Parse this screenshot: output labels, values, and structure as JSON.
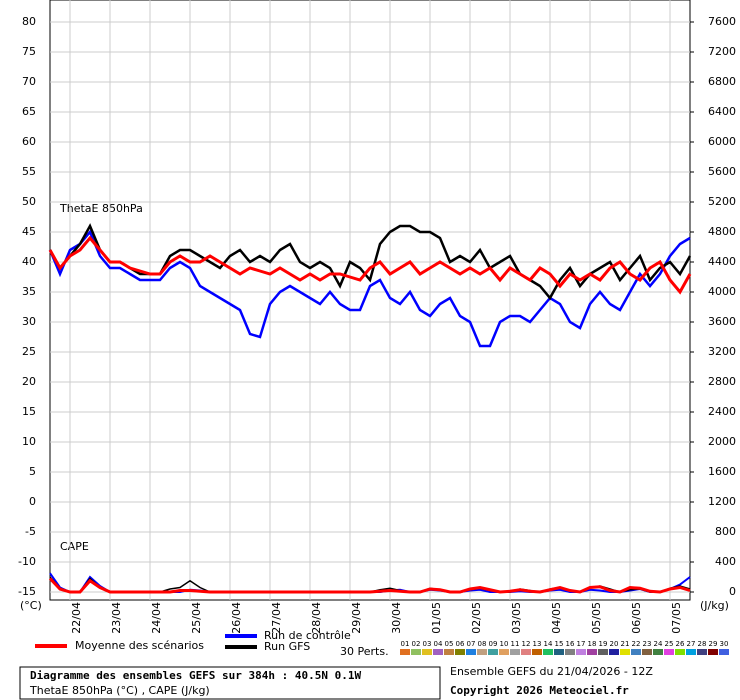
{
  "chart_data": {
    "type": "line",
    "label_left": "ThetaE 850hPa",
    "label_cape": "CAPE",
    "y_unit": "(°C)",
    "y2_unit": "(J/kg)",
    "categories": [
      null,
      null,
      "22/04",
      null,
      null,
      null,
      "23/04",
      null,
      null,
      null,
      "24/04",
      null,
      null,
      null,
      "25/04",
      null,
      null,
      null,
      "26/04",
      null,
      null,
      null,
      "27/04",
      null,
      null,
      null,
      "28/04",
      null,
      null,
      null,
      "29/04",
      null,
      null,
      null,
      "30/04",
      null,
      null,
      null,
      "01/05",
      null,
      null,
      null,
      "02/05",
      null,
      null,
      null,
      "03/05",
      null,
      null,
      null,
      "04/05",
      null,
      null,
      null,
      "05/05",
      null,
      null,
      null,
      "06/05",
      null,
      null,
      null,
      "07/05",
      null,
      null
    ],
    "ylim": [
      -15,
      80
    ],
    "yticks": [
      -15,
      -10,
      -5,
      0,
      5,
      10,
      15,
      20,
      25,
      30,
      35,
      40,
      45,
      50,
      55,
      60,
      65,
      70,
      75,
      80
    ],
    "y2lim": [
      0,
      7600
    ],
    "y2ticks": [
      0,
      400,
      800,
      1200,
      1600,
      2000,
      2400,
      2800,
      3200,
      3600,
      4000,
      4400,
      4800,
      5200,
      5600,
      6000,
      6400,
      6800,
      7200,
      7600
    ],
    "grid": true,
    "series": [
      {
        "name": "Moyenne des scénarios",
        "color": "#ff0000",
        "width": 3,
        "values": [
          42,
          39,
          41,
          42,
          44,
          42,
          40,
          40,
          39,
          38.5,
          38,
          38,
          40,
          41,
          40,
          40,
          41,
          40,
          39,
          38,
          39,
          38.5,
          38,
          39,
          38,
          37,
          38,
          37,
          38,
          38,
          37.5,
          37,
          39,
          40,
          38,
          39,
          40,
          38,
          39,
          40,
          39,
          38,
          39,
          38,
          39,
          37,
          39,
          38,
          37,
          39,
          38,
          36,
          38,
          37,
          38,
          37,
          39,
          40,
          38,
          37,
          39,
          40,
          37,
          35,
          38
        ]
      },
      {
        "name": "Run de contrôle",
        "color": "#0000ff",
        "width": 2.5,
        "values": [
          42,
          38,
          42,
          43,
          45,
          41,
          39,
          39,
          38,
          37,
          37,
          37,
          39,
          40,
          39,
          36,
          35,
          34,
          33,
          32,
          28,
          27.5,
          33,
          35,
          36,
          35,
          34,
          33,
          35,
          33,
          32,
          32,
          36,
          37,
          34,
          33,
          35,
          32,
          31,
          33,
          34,
          31,
          30,
          26,
          26,
          30,
          31,
          31,
          30,
          32,
          34,
          33,
          30,
          29,
          33,
          35,
          33,
          32,
          35,
          38,
          36,
          38,
          41,
          43,
          44
        ]
      },
      {
        "name": "Run GFS",
        "color": "#000000",
        "width": 2.5,
        "values": [
          42,
          39,
          41,
          43,
          46,
          42,
          40,
          40,
          39,
          38,
          38,
          38,
          41,
          42,
          42,
          41,
          40,
          39,
          41,
          42,
          40,
          41,
          40,
          42,
          43,
          40,
          39,
          40,
          39,
          36,
          40,
          39,
          37,
          43,
          45,
          46,
          46,
          45,
          45,
          44,
          40,
          41,
          40,
          42,
          39,
          40,
          41,
          38,
          37,
          36,
          34,
          37,
          39,
          36,
          38,
          39,
          40,
          37,
          39,
          41,
          37,
          39,
          40,
          38,
          41
        ]
      },
      {
        "name": "Moyenne des scénarios",
        "color": "#ff0000",
        "width": 3,
        "axis": "y2",
        "values": [
          180,
          40,
          0,
          0,
          150,
          60,
          0,
          0,
          0,
          0,
          0,
          0,
          0,
          20,
          20,
          10,
          0,
          0,
          0,
          0,
          0,
          0,
          0,
          0,
          0,
          0,
          0,
          0,
          0,
          0,
          0,
          0,
          0,
          10,
          20,
          10,
          0,
          0,
          40,
          30,
          0,
          0,
          40,
          60,
          30,
          0,
          10,
          30,
          10,
          0,
          30,
          60,
          20,
          0,
          60,
          70,
          20,
          0,
          60,
          50,
          10,
          0,
          40,
          60,
          20
        ]
      },
      {
        "name": "Run de contrôle",
        "color": "#0000ff",
        "width": 2,
        "axis": "y2",
        "values": [
          250,
          60,
          0,
          0,
          200,
          80,
          0,
          0,
          0,
          0,
          0,
          0,
          0,
          0,
          30,
          20,
          0,
          0,
          0,
          0,
          0,
          0,
          0,
          0,
          0,
          0,
          0,
          0,
          0,
          0,
          0,
          0,
          0,
          0,
          20,
          30,
          0,
          0,
          30,
          20,
          0,
          0,
          20,
          30,
          0,
          0,
          0,
          10,
          0,
          0,
          20,
          30,
          0,
          0,
          30,
          20,
          0,
          0,
          20,
          40,
          0,
          0,
          40,
          100,
          200
        ]
      },
      {
        "name": "Run GFS",
        "color": "#000000",
        "width": 1.5,
        "axis": "y2",
        "values": [
          200,
          50,
          0,
          0,
          180,
          60,
          0,
          0,
          0,
          0,
          0,
          0,
          40,
          60,
          150,
          60,
          0,
          0,
          0,
          0,
          0,
          0,
          0,
          0,
          0,
          0,
          0,
          0,
          0,
          0,
          0,
          0,
          0,
          30,
          50,
          20,
          0,
          0,
          50,
          30,
          0,
          0,
          30,
          50,
          20,
          0,
          0,
          40,
          20,
          0,
          40,
          60,
          20,
          0,
          60,
          80,
          40,
          0,
          30,
          40,
          0,
          0,
          50,
          80,
          40
        ]
      }
    ],
    "perts_label": "30 Perts.",
    "perturbations": [
      {
        "name": "01",
        "color": "#e07020"
      },
      {
        "name": "02",
        "color": "#90c060"
      },
      {
        "name": "03",
        "color": "#e0c020"
      },
      {
        "name": "04",
        "color": "#a060c0"
      },
      {
        "name": "05",
        "color": "#c08040"
      },
      {
        "name": "06",
        "color": "#808000"
      },
      {
        "name": "07",
        "color": "#2080e0"
      },
      {
        "name": "08",
        "color": "#c0a080"
      },
      {
        "name": "09",
        "color": "#40a0a0"
      },
      {
        "name": "10",
        "color": "#e0a060"
      },
      {
        "name": "11",
        "color": "#a0a0a0"
      },
      {
        "name": "12",
        "color": "#e08080"
      },
      {
        "name": "13",
        "color": "#c06000"
      },
      {
        "name": "14",
        "color": "#20c060"
      },
      {
        "name": "15",
        "color": "#206080"
      },
      {
        "name": "16",
        "color": "#808080"
      },
      {
        "name": "17",
        "color": "#c080e0"
      },
      {
        "name": "18",
        "color": "#a040a0"
      },
      {
        "name": "19",
        "color": "#606060"
      },
      {
        "name": "20",
        "color": "#2020a0"
      },
      {
        "name": "21",
        "color": "#e0e000"
      },
      {
        "name": "22",
        "color": "#4080c0"
      },
      {
        "name": "23",
        "color": "#806040"
      },
      {
        "name": "24",
        "color": "#408040"
      },
      {
        "name": "25",
        "color": "#e040e0"
      },
      {
        "name": "26",
        "color": "#80e000"
      },
      {
        "name": "27",
        "color": "#00a0e0"
      },
      {
        "name": "28",
        "color": "#404080"
      },
      {
        "name": "29",
        "color": "#800000"
      },
      {
        "name": "30",
        "color": "#4060e0"
      }
    ]
  },
  "footer": {
    "title": "Diagramme des ensembles GEFS sur 384h : 40.5N 0.1W",
    "subtitle": "ThetaE 850hPa (°C) , CAPE (J/kg)",
    "run": "Ensemble GEFS du 21/04/2026 - 12Z",
    "copyright": "Copyright 2026 Meteociel.fr"
  }
}
